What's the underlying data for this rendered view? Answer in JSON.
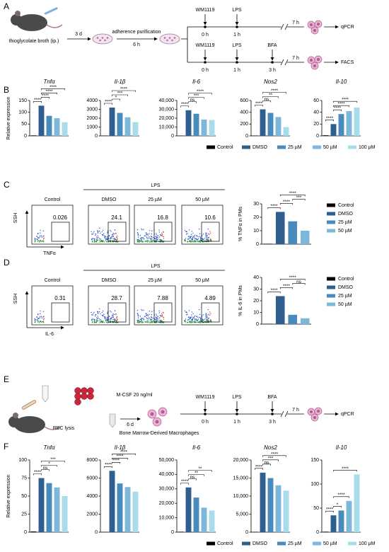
{
  "panel_labels": [
    "A",
    "B",
    "C",
    "D",
    "E",
    "F"
  ],
  "diagram_a": {
    "injection": "thioglycolate broth (ip.)",
    "step1": "3 d",
    "step2": "adherence purification",
    "step2_time": "6 h",
    "timelines": [
      {
        "treatments": [
          {
            "name": "WM1119",
            "time": "0 h"
          },
          {
            "name": "LPS",
            "time": "1 h"
          }
        ],
        "end": "7 h",
        "readout": "qPCR"
      },
      {
        "treatments": [
          {
            "name": "WM1119",
            "time": "0 h"
          },
          {
            "name": "LPS",
            "time": "1 h"
          },
          {
            "name": "BFA",
            "time": "3 h"
          }
        ],
        "end": "7 h",
        "readout": "FACS"
      }
    ]
  },
  "diagram_e": {
    "step1": "RBC lysis",
    "step2": "M-CSF 20 ng/ml",
    "step2_time": "6 d",
    "cells": "Bone Marrow-Derived Macrophages",
    "timeline": {
      "treatments": [
        {
          "name": "WM1119",
          "time": "0 h"
        },
        {
          "name": "LPS",
          "time": "1 h"
        },
        {
          "name": "BFA",
          "time": "3 h"
        }
      ],
      "end": "7 h",
      "readout": "qPCR"
    }
  },
  "flow_c": {
    "header": "LPS",
    "y_label": "SSH",
    "x_label": "TNFα",
    "plots": [
      {
        "title": "Control",
        "gate_value": 0.026
      },
      {
        "title": "DMSO",
        "gate_value": 24.1
      },
      {
        "title": "25 µM",
        "gate_value": 16.8
      },
      {
        "title": "50 µM",
        "gate_value": 10.6
      }
    ]
  },
  "flow_d": {
    "header": "LPS",
    "y_label": "SSH",
    "x_label": "IL-6",
    "plots": [
      {
        "title": "Control",
        "gate_value": 0.31
      },
      {
        "title": "DMSO",
        "gate_value": 28.7
      },
      {
        "title": "25 µM",
        "gate_value": 7.88
      },
      {
        "title": "50 µM",
        "gate_value": 4.89
      }
    ]
  },
  "chart_data": [
    {
      "type": "bar",
      "title": "Tnfα",
      "ylabel": "Relative expression",
      "categories": [
        "Control",
        "DMSO",
        "25 µM",
        "50 µM",
        "100 µM"
      ],
      "colors": [
        "#000000",
        "#2f5f8f",
        "#4a8bbd",
        "#7db7da",
        "#a9dceb"
      ],
      "values": [
        2,
        128,
        85,
        75,
        58
      ],
      "ylim": [
        0,
        150
      ],
      "yticks": [
        0,
        50,
        100,
        150
      ],
      "annotations": [
        {
          "between": [
            "Control",
            "DMSO"
          ],
          "text": "****"
        },
        {
          "between": [
            "DMSO",
            "25 µM"
          ],
          "text": "****"
        },
        {
          "between": [
            "DMSO",
            "50 µM"
          ],
          "text": "****"
        },
        {
          "between": [
            "DMSO",
            "100 µM"
          ],
          "text": "****"
        }
      ]
    },
    {
      "type": "bar",
      "title": "Il-1β",
      "categories": [
        "Control",
        "DMSO",
        "25 µM",
        "50 µM",
        "100 µM"
      ],
      "colors": [
        "#000000",
        "#2f5f8f",
        "#4a8bbd",
        "#7db7da",
        "#a9dceb"
      ],
      "values": [
        30,
        3200,
        2600,
        2100,
        1550
      ],
      "ylim": [
        0,
        4000
      ],
      "yticks": [
        0,
        1000,
        2000,
        3000,
        4000
      ],
      "annotations": [
        {
          "between": [
            "Control",
            "DMSO"
          ],
          "text": "****"
        },
        {
          "between": [
            "DMSO",
            "25 µM"
          ],
          "text": "*"
        },
        {
          "between": [
            "DMSO",
            "50 µM"
          ],
          "text": "***"
        },
        {
          "between": [
            "DMSO",
            "100 µM"
          ],
          "text": "****"
        }
      ]
    },
    {
      "type": "bar",
      "title": "Il-6",
      "categories": [
        "Control",
        "DMSO",
        "25 µM",
        "50 µM",
        "100 µM"
      ],
      "colors": [
        "#000000",
        "#2f5f8f",
        "#4a8bbd",
        "#7db7da",
        "#a9dceb"
      ],
      "values": [
        300,
        29000,
        25000,
        18500,
        18000
      ],
      "ylim": [
        0,
        40000
      ],
      "yticks": [
        0,
        {
          "value": 10000,
          "label": "10,000"
        },
        {
          "value": 20000,
          "label": "20,000"
        },
        {
          "value": 30000,
          "label": "30,000"
        },
        {
          "value": 40000,
          "label": "40,000"
        }
      ],
      "annotations": [
        {
          "between": [
            "Control",
            "DMSO"
          ],
          "text": "****"
        },
        {
          "between": [
            "DMSO",
            "25 µM"
          ],
          "text": "ns"
        },
        {
          "between": [
            "DMSO",
            "50 µM"
          ],
          "text": "***"
        },
        {
          "between": [
            "DMSO",
            "100 µM"
          ],
          "text": "****"
        }
      ]
    },
    {
      "type": "bar",
      "title": "Nos2",
      "categories": [
        "Control",
        "DMSO",
        "25 µM",
        "50 µM",
        "100 µM"
      ],
      "colors": [
        "#000000",
        "#2f5f8f",
        "#4a8bbd",
        "#7db7da",
        "#a9dceb"
      ],
      "values": [
        5,
        450,
        390,
        320,
        150
      ],
      "ylim": [
        0,
        600
      ],
      "yticks": [
        0,
        200,
        400,
        600
      ],
      "annotations": [
        {
          "between": [
            "Control",
            "DMSO"
          ],
          "text": "****"
        },
        {
          "between": [
            "DMSO",
            "25 µM"
          ],
          "text": "ns"
        },
        {
          "between": [
            "DMSO",
            "50 µM"
          ],
          "text": "**"
        },
        {
          "between": [
            "DMSO",
            "100 µM"
          ],
          "text": "****"
        }
      ]
    },
    {
      "type": "bar",
      "title": "Il-10",
      "legend": "bottom",
      "categories": [
        "Control",
        "DMSO",
        "25 µM",
        "50 µM",
        "100 µM"
      ],
      "colors": [
        "#000000",
        "#2f5f8f",
        "#4a8bbd",
        "#7db7da",
        "#a9dceb"
      ],
      "values": [
        1,
        20,
        37,
        42,
        48
      ],
      "ylim": [
        0,
        60
      ],
      "yticks": [
        0,
        20,
        40,
        60
      ],
      "annotations": [
        {
          "between": [
            "Control",
            "DMSO"
          ],
          "text": "****"
        },
        {
          "between": [
            "DMSO",
            "25 µM"
          ],
          "text": "****"
        },
        {
          "between": [
            "DMSO",
            "50 µM"
          ],
          "text": "****"
        },
        {
          "between": [
            "DMSO",
            "100 µM"
          ],
          "text": "****"
        }
      ]
    },
    {
      "type": "bar",
      "ylabel": "% TNFα in PMs",
      "legend": "right",
      "categories": [
        "Control",
        "DMSO",
        "25 µM",
        "50 µM"
      ],
      "colors": [
        "#000000",
        "#2f5f8f",
        "#4a8bbd",
        "#7db7da"
      ],
      "values": [
        0.3,
        24,
        17,
        10
      ],
      "ylim": [
        0,
        30
      ],
      "yticks": [
        0,
        10,
        20,
        30
      ],
      "annotations": [
        {
          "between": [
            "Control",
            "DMSO"
          ],
          "text": "****"
        },
        {
          "between": [
            "DMSO",
            "25 µM"
          ],
          "text": "****"
        },
        {
          "between": [
            "25 µM",
            "50 µM"
          ],
          "text": "***"
        },
        {
          "between": [
            "DMSO",
            "50 µM"
          ],
          "text": "****"
        }
      ]
    },
    {
      "type": "bar",
      "ylabel": "% IL-6 in PMs",
      "legend": "right",
      "categories": [
        "Control",
        "DMSO",
        "25 µM",
        "50 µM"
      ],
      "colors": [
        "#000000",
        "#2f5f8f",
        "#4a8bbd",
        "#7db7da"
      ],
      "values": [
        0.3,
        24,
        8,
        5
      ],
      "ylim": [
        0,
        40
      ],
      "yticks": [
        0,
        10,
        20,
        30,
        40
      ],
      "annotations": [
        {
          "between": [
            "Control",
            "DMSO"
          ],
          "text": "****"
        },
        {
          "between": [
            "DMSO",
            "25 µM"
          ],
          "text": "****"
        },
        {
          "between": [
            "25 µM",
            "50 µM"
          ],
          "text": "ns"
        },
        {
          "between": [
            "DMSO",
            "50 µM"
          ],
          "text": "****"
        }
      ]
    },
    {
      "type": "bar",
      "title": "Tnfα",
      "ylabel": "Relative expression",
      "categories": [
        "Control",
        "DMSO",
        "25 µM",
        "50 µM",
        "100 µM"
      ],
      "colors": [
        "#000000",
        "#2f5f8f",
        "#4a8bbd",
        "#7db7da",
        "#a9dceb"
      ],
      "values": [
        1,
        75,
        68,
        62,
        50
      ],
      "ylim": [
        0,
        100
      ],
      "yticks": [
        0,
        25,
        50,
        75,
        100
      ],
      "annotations": [
        {
          "between": [
            "Control",
            "DMSO"
          ],
          "text": "****"
        },
        {
          "between": [
            "DMSO",
            "25 µM"
          ],
          "text": "ns"
        },
        {
          "between": [
            "DMSO",
            "50 µM"
          ],
          "text": "*"
        },
        {
          "between": [
            "DMSO",
            "100 µM"
          ],
          "text": "***"
        }
      ]
    },
    {
      "type": "bar",
      "title": "Il-1β",
      "categories": [
        "Control",
        "DMSO",
        "25 µM",
        "50 µM",
        "100 µM"
      ],
      "colors": [
        "#000000",
        "#2f5f8f",
        "#4a8bbd",
        "#7db7da",
        "#a9dceb"
      ],
      "values": [
        30,
        6800,
        5400,
        5000,
        4500
      ],
      "ylim": [
        0,
        8000
      ],
      "yticks": [
        0,
        2000,
        4000,
        6000,
        8000
      ],
      "annotations": [
        {
          "between": [
            "Control",
            "DMSO"
          ],
          "text": "****"
        },
        {
          "between": [
            "DMSO",
            "25 µM"
          ],
          "text": "****"
        },
        {
          "between": [
            "DMSO",
            "50 µM"
          ],
          "text": "****"
        },
        {
          "between": [
            "DMSO",
            "100 µM"
          ],
          "text": "****"
        }
      ]
    },
    {
      "type": "bar",
      "title": "Il-6",
      "categories": [
        "Control",
        "DMSO",
        "25 µM",
        "50 µM",
        "100 µM"
      ],
      "colors": [
        "#000000",
        "#2f5f8f",
        "#4a8bbd",
        "#7db7da",
        "#a9dceb"
      ],
      "values": [
        300,
        31000,
        24000,
        17000,
        15000
      ],
      "ylim": [
        0,
        50000
      ],
      "yticks": [
        0,
        {
          "value": 10000,
          "label": "10,000"
        },
        {
          "value": 20000,
          "label": "20,000"
        },
        {
          "value": 30000,
          "label": "30,000"
        },
        {
          "value": 40000,
          "label": "40,000"
        },
        {
          "value": 50000,
          "label": "50,000"
        }
      ],
      "annotations": [
        {
          "between": [
            "Control",
            "DMSO"
          ],
          "text": "****"
        },
        {
          "between": [
            "DMSO",
            "25 µM"
          ],
          "text": "ns"
        },
        {
          "between": [
            "DMSO",
            "50 µM"
          ],
          "text": "**"
        },
        {
          "between": [
            "DMSO",
            "100 µM"
          ],
          "text": "**"
        }
      ]
    },
    {
      "type": "bar",
      "title": "Nos2",
      "categories": [
        "Control",
        "DMSO",
        "25 µM",
        "50 µM",
        "100 µM"
      ],
      "colors": [
        "#000000",
        "#2f5f8f",
        "#4a8bbd",
        "#7db7da",
        "#a9dceb"
      ],
      "values": [
        100,
        16500,
        15000,
        13000,
        11500
      ],
      "ylim": [
        0,
        20000
      ],
      "yticks": [
        0,
        {
          "value": 5000,
          "label": "5,000"
        },
        {
          "value": 10000,
          "label": "10,000"
        },
        {
          "value": 15000,
          "label": "15,000"
        },
        {
          "value": 20000,
          "label": "20,000"
        }
      ],
      "annotations": [
        {
          "between": [
            "Control",
            "DMSO"
          ],
          "text": "****"
        },
        {
          "between": [
            "DMSO",
            "25 µM"
          ],
          "text": "ns"
        },
        {
          "between": [
            "DMSO",
            "50 µM"
          ],
          "text": "***"
        },
        {
          "between": [
            "DMSO",
            "100 µM"
          ],
          "text": "****"
        }
      ]
    },
    {
      "type": "bar",
      "title": "Il-10",
      "legend": "bottom",
      "categories": [
        "Control",
        "DMSO",
        "25 µM",
        "50 µM",
        "100 µM"
      ],
      "colors": [
        "#000000",
        "#2f5f8f",
        "#4a8bbd",
        "#7db7da",
        "#a9dceb"
      ],
      "values": [
        1,
        35,
        45,
        65,
        120
      ],
      "ylim": [
        0,
        150
      ],
      "yticks": [
        0,
        50,
        100,
        150
      ],
      "annotations": [
        {
          "between": [
            "Control",
            "DMSO"
          ],
          "text": "****"
        },
        {
          "between": [
            "DMSO",
            "25 µM"
          ],
          "text": "*"
        },
        {
          "between": [
            "DMSO",
            "50 µM"
          ],
          "text": "****"
        },
        {
          "between": [
            "DMSO",
            "100 µM"
          ],
          "text": "****"
        }
      ]
    }
  ]
}
